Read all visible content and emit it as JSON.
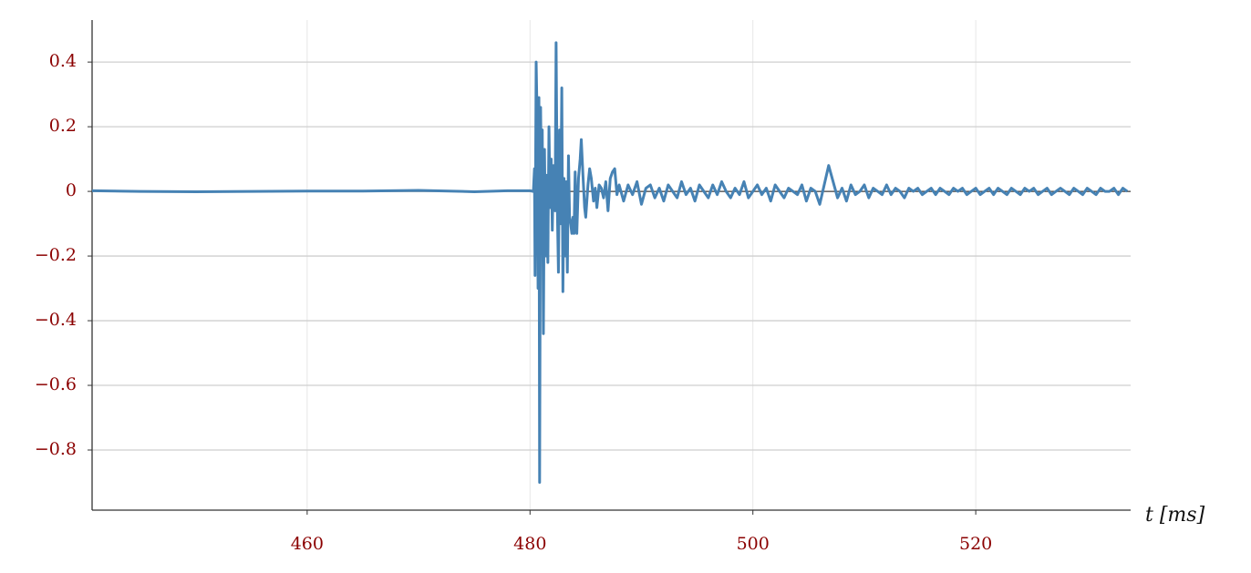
{
  "chart_data": {
    "type": "line",
    "x_label": "t [ms]",
    "xlim": [
      440.7,
      533.9
    ],
    "xticks": [
      460,
      480,
      500,
      520
    ],
    "ylim": [
      -0.986,
      0.53
    ],
    "yticks": [
      {
        "value": -0.8,
        "label": "−0.8"
      },
      {
        "value": -0.6,
        "label": "−0.6"
      },
      {
        "value": -0.4,
        "label": "−0.4"
      },
      {
        "value": -0.2,
        "label": "−0.2"
      },
      0,
      0.2,
      0.4
    ],
    "grid": true,
    "series": [
      {
        "color": "#4682b4",
        "x": [
          440.7,
          445,
          450,
          455,
          460,
          465,
          470,
          475,
          478,
          480,
          480.3,
          480.4,
          480.45,
          480.55,
          480.65,
          480.72,
          480.8,
          480.86,
          480.95,
          481.05,
          481.1,
          481.2,
          481.3,
          481.4,
          481.5,
          481.6,
          481.7,
          481.8,
          481.9,
          482.0,
          482.1,
          482.25,
          482.34,
          482.45,
          482.55,
          482.65,
          482.75,
          482.85,
          482.95,
          483.05,
          483.15,
          483.25,
          483.35,
          483.45,
          483.55,
          483.65,
          483.75,
          483.85,
          483.95,
          484.05,
          484.2,
          484.35,
          484.5,
          484.6,
          484.75,
          484.9,
          485.0,
          485.2,
          485.35,
          485.5,
          485.7,
          485.85,
          486.0,
          486.2,
          486.4,
          486.6,
          486.8,
          487.0,
          487.2,
          487.4,
          487.6,
          487.8,
          488.0,
          488.4,
          488.8,
          489.2,
          489.6,
          490,
          490.4,
          490.8,
          491.2,
          491.6,
          492,
          492.4,
          492.8,
          493.2,
          493.6,
          494,
          494.4,
          494.8,
          495.2,
          495.6,
          496,
          496.4,
          496.8,
          497.2,
          497.6,
          498,
          498.4,
          498.8,
          499.2,
          499.6,
          500,
          500.4,
          500.8,
          501.2,
          501.6,
          502,
          502.4,
          502.8,
          503.2,
          503.6,
          504,
          504.4,
          504.8,
          505.2,
          505.6,
          506,
          506.4,
          506.8,
          507.2,
          507.6,
          508,
          508.4,
          508.8,
          509.2,
          509.6,
          510,
          510.4,
          510.8,
          511.2,
          511.6,
          512,
          512.4,
          512.8,
          513.2,
          513.6,
          514,
          514.4,
          514.8,
          515.2,
          515.6,
          516,
          516.4,
          516.8,
          517.2,
          517.6,
          518,
          518.4,
          518.8,
          519.2,
          519.6,
          520,
          520.4,
          520.8,
          521.2,
          521.6,
          522,
          522.4,
          522.8,
          523.2,
          523.6,
          524,
          524.4,
          524.8,
          525.2,
          525.6,
          526,
          526.4,
          526.8,
          527.2,
          527.6,
          528,
          528.4,
          528.8,
          529.2,
          529.6,
          530,
          530.4,
          530.8,
          531.2,
          531.6,
          532,
          532.4,
          532.8,
          533.2,
          533.6
        ],
        "values": [
          0.002,
          0,
          -0.001,
          0,
          0.001,
          0.001,
          0.003,
          -0.001,
          0.002,
          0.002,
          0,
          0.07,
          -0.26,
          0.4,
          0.2,
          -0.3,
          0.29,
          -0.9,
          0.26,
          -0.1,
          0.19,
          -0.44,
          0.13,
          -0.2,
          0.05,
          -0.22,
          0.2,
          -0.05,
          0.1,
          -0.12,
          0.08,
          -0.06,
          0.46,
          -0.05,
          -0.25,
          0.19,
          -0.1,
          0.32,
          -0.31,
          0.04,
          -0.2,
          0.03,
          -0.25,
          0.11,
          -0.08,
          -0.1,
          -0.13,
          -0.08,
          -0.13,
          0.06,
          -0.13,
          0.04,
          0.1,
          0.16,
          0.05,
          -0.05,
          -0.08,
          0.02,
          0.07,
          0.04,
          -0.03,
          0.01,
          -0.05,
          0.02,
          0.01,
          -0.02,
          0.03,
          -0.06,
          0.04,
          0.06,
          0.07,
          -0.01,
          0.02,
          -0.03,
          0.02,
          -0.01,
          0.03,
          -0.04,
          0.01,
          0.02,
          -0.02,
          0.01,
          -0.03,
          0.02,
          0.0,
          -0.02,
          0.03,
          -0.01,
          0.01,
          -0.03,
          0.02,
          0.0,
          -0.02,
          0.02,
          -0.01,
          0.03,
          0.0,
          -0.02,
          0.01,
          -0.01,
          0.03,
          -0.02,
          0.0,
          0.02,
          -0.01,
          0.01,
          -0.03,
          0.02,
          0.0,
          -0.02,
          0.01,
          0.0,
          -0.01,
          0.02,
          -0.03,
          0.01,
          0.0,
          -0.04,
          0.02,
          0.08,
          0.03,
          -0.02,
          0.01,
          -0.03,
          0.02,
          -0.01,
          0.0,
          0.02,
          -0.02,
          0.01,
          0.0,
          -0.01,
          0.02,
          -0.01,
          0.01,
          0.0,
          -0.02,
          0.01,
          0.0,
          0.01,
          -0.01,
          0.0,
          0.01,
          -0.01,
          0.01,
          0.0,
          -0.01,
          0.01,
          0.0,
          0.01,
          -0.01,
          0.0,
          0.01,
          -0.01,
          0.0,
          0.01,
          -0.01,
          0.01,
          0.0,
          -0.01,
          0.01,
          0.0,
          -0.01,
          0.01,
          0.0,
          0.01,
          -0.01,
          0.0,
          0.01,
          -0.01,
          0.0,
          0.01,
          0.0,
          -0.01,
          0.01,
          0.0,
          -0.01,
          0.01,
          0.0,
          -0.01,
          0.01,
          0.0,
          0.0,
          0.01,
          -0.01,
          0.01,
          0.0
        ]
      }
    ]
  }
}
